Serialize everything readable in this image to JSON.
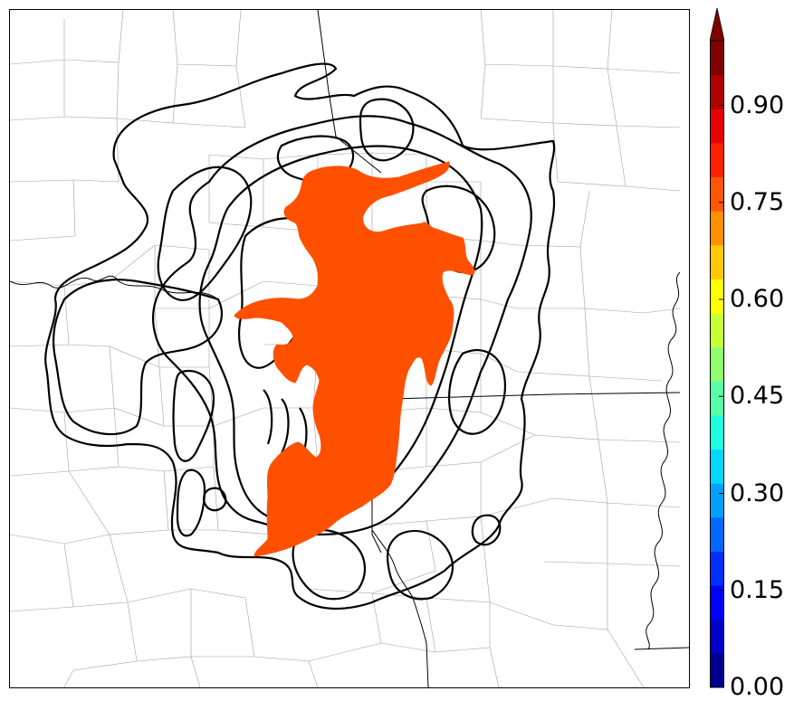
{
  "colorbar": {
    "ticks": [
      {
        "value": 0.0,
        "label": "0.00"
      },
      {
        "value": 0.15,
        "label": "0.15"
      },
      {
        "value": 0.3,
        "label": "0.30"
      },
      {
        "value": 0.45,
        "label": "0.45"
      },
      {
        "value": 0.6,
        "label": "0.60"
      },
      {
        "value": 0.75,
        "label": "0.75"
      },
      {
        "value": 0.9,
        "label": "0.90"
      }
    ],
    "range": [
      0.0,
      1.0
    ],
    "extend": "max",
    "colors": [
      "#00008f",
      "#0000c8",
      "#0000ff",
      "#0030ff",
      "#0068ff",
      "#00a0ff",
      "#00d8ff",
      "#20ffdf",
      "#58ffa7",
      "#90ff6f",
      "#c8ff37",
      "#ffff00",
      "#ffc800",
      "#ff9000",
      "#ff5800",
      "#ff2000",
      "#e80000",
      "#b00000",
      "#800000"
    ],
    "extend_color": "#800000"
  },
  "map": {
    "filled_region_value": 0.82,
    "filled_region_color": "#ff5000",
    "member_contour_color": "#000000",
    "county_line_color": "#9a9a9a",
    "state_line_color": "#000000"
  }
}
